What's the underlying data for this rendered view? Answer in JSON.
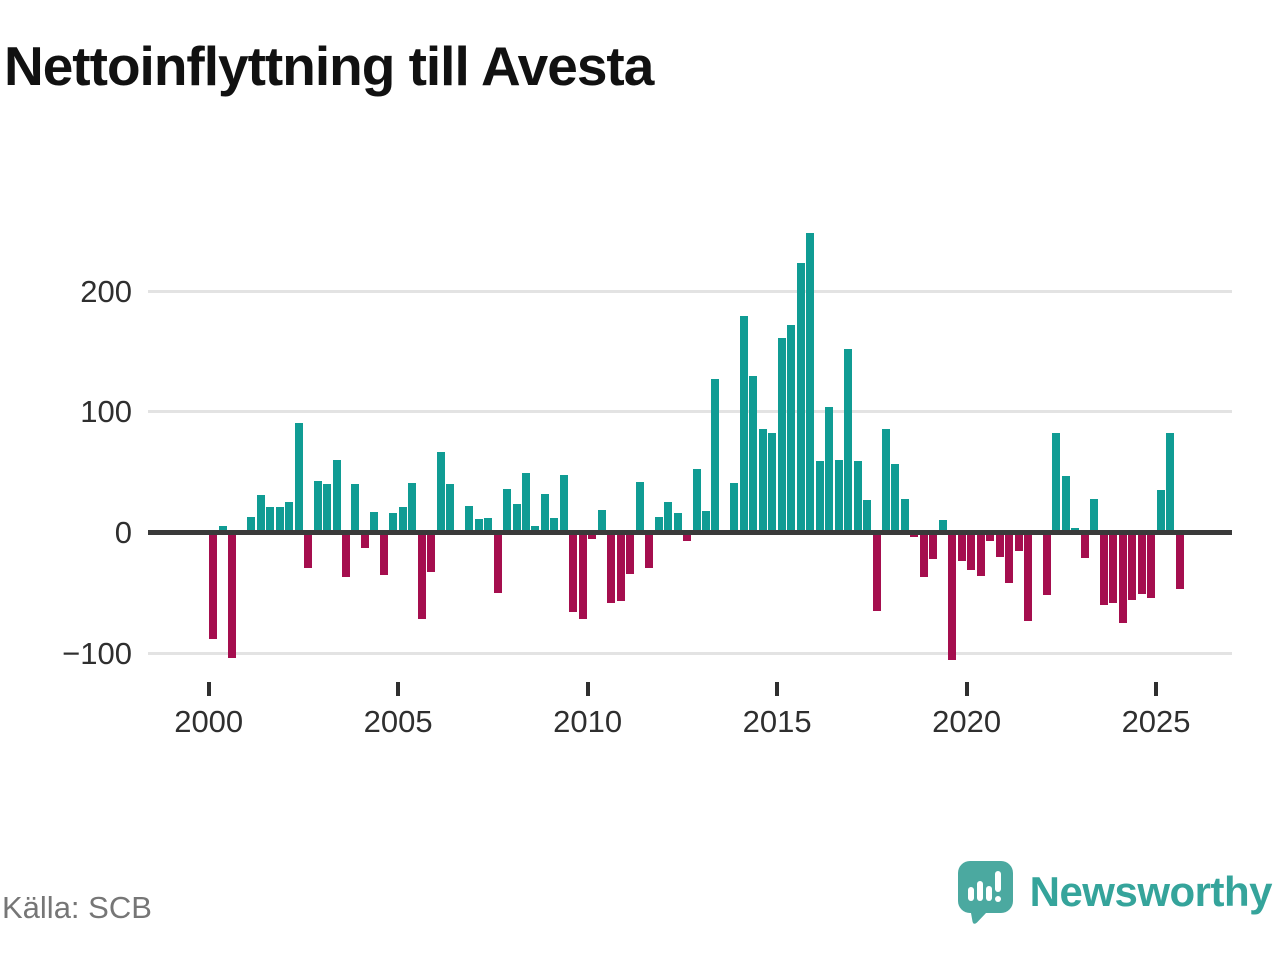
{
  "title": "Nettoinflyttning till Avesta",
  "source": {
    "text": "Källa: SCB"
  },
  "logo": {
    "text": "Newsworthy",
    "icon": "newsworthy-bars-icon"
  },
  "colors": {
    "positive": "#109c94",
    "negative": "#a50e4e",
    "grid": "#e3e3e3",
    "axis": "#3a3a3a",
    "tick_text": "#2f2f2f",
    "source_text": "#767676",
    "logo_icon": "#4ba9a0",
    "logo_text": "#35a49b"
  },
  "chart_data": {
    "type": "bar",
    "title": "Nettoinflyttning till Avesta",
    "frequency": "quarterly",
    "legend": "none",
    "grid": "horizontal",
    "ylim": [
      -130,
      260
    ],
    "y_tick_values": [
      200,
      100,
      0,
      -100
    ],
    "y_tick_labels": [
      "200",
      "100",
      "0",
      "−100"
    ],
    "x_tick_labels": [
      "2000",
      "2005",
      "2010",
      "2015",
      "2020",
      "2025"
    ],
    "quarters": [
      "2000Q1",
      "2000Q2",
      "2000Q3",
      "2000Q4",
      "2001Q1",
      "2001Q2",
      "2001Q3",
      "2001Q4",
      "2002Q1",
      "2002Q2",
      "2002Q3",
      "2002Q4",
      "2003Q1",
      "2003Q2",
      "2003Q3",
      "2003Q4",
      "2004Q1",
      "2004Q2",
      "2004Q3",
      "2004Q4",
      "2005Q1",
      "2005Q2",
      "2005Q3",
      "2005Q4",
      "2006Q1",
      "2006Q2",
      "2006Q3",
      "2006Q4",
      "2007Q1",
      "2007Q2",
      "2007Q3",
      "2007Q4",
      "2008Q1",
      "2008Q2",
      "2008Q3",
      "2008Q4",
      "2009Q1",
      "2009Q2",
      "2009Q3",
      "2009Q4",
      "2010Q1",
      "2010Q2",
      "2010Q3",
      "2010Q4",
      "2011Q1",
      "2011Q2",
      "2011Q3",
      "2011Q4",
      "2012Q1",
      "2012Q2",
      "2012Q3",
      "2012Q4",
      "2013Q1",
      "2013Q2",
      "2013Q3",
      "2013Q4",
      "2014Q1",
      "2014Q2",
      "2014Q3",
      "2014Q4",
      "2015Q1",
      "2015Q2",
      "2015Q3",
      "2015Q4",
      "2016Q1",
      "2016Q2",
      "2016Q3",
      "2016Q4",
      "2017Q1",
      "2017Q2",
      "2017Q3",
      "2017Q4",
      "2018Q1",
      "2018Q2",
      "2018Q3",
      "2018Q4",
      "2019Q1",
      "2019Q2",
      "2019Q3",
      "2019Q4",
      "2020Q1",
      "2020Q2",
      "2020Q3",
      "2020Q4",
      "2021Q1",
      "2021Q2",
      "2021Q3",
      "2021Q4",
      "2022Q1",
      "2022Q2",
      "2022Q3",
      "2022Q4",
      "2023Q1",
      "2023Q2",
      "2023Q3",
      "2023Q4",
      "2024Q1",
      "2024Q2",
      "2024Q3",
      "2024Q4",
      "2025Q1",
      "2025Q2",
      "2025Q3"
    ],
    "values": [
      -88,
      5,
      -104,
      0,
      13,
      31,
      21,
      21,
      25,
      91,
      -29,
      43,
      40,
      60,
      -37,
      40,
      -13,
      17,
      -35,
      16,
      21,
      41,
      -72,
      -33,
      67,
      40,
      0,
      22,
      11,
      12,
      -50,
      36,
      24,
      49,
      5,
      32,
      12,
      48,
      -66,
      -72,
      -5,
      19,
      -58,
      -57,
      -34,
      42,
      -29,
      13,
      25,
      16,
      -7,
      53,
      18,
      127,
      0,
      41,
      179,
      130,
      86,
      82,
      161,
      172,
      223,
      248,
      59,
      104,
      60,
      152,
      59,
      27,
      -65,
      86,
      57,
      28,
      -4,
      -37,
      -22,
      10,
      -106,
      -24,
      -31,
      -36,
      -7,
      -20,
      -42,
      -15,
      -73,
      0,
      -52,
      82,
      47,
      4,
      -21,
      28,
      -60,
      -58,
      -75,
      -56,
      -51,
      -54,
      35,
      82,
      -47
    ]
  }
}
